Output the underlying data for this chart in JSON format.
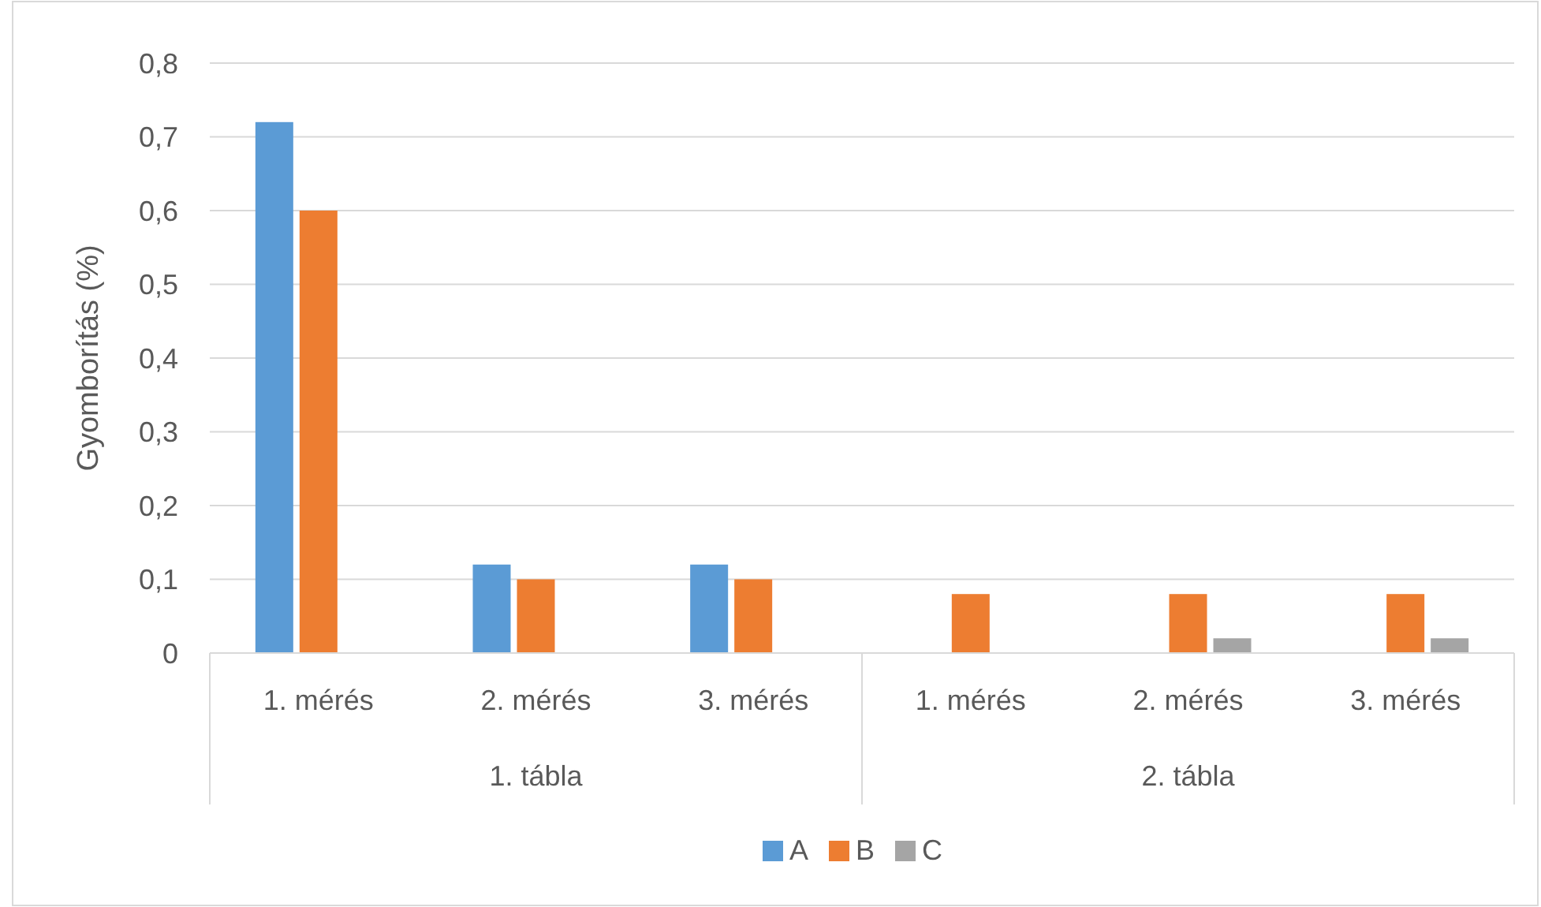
{
  "chart_data": {
    "type": "bar",
    "ylabel": "Gyomborítás (%)",
    "categories": [
      "1. mérés",
      "2. mérés",
      "3. mérés",
      "1. mérés",
      "2. mérés",
      "3. mérés"
    ],
    "annotations": [
      "1. tábla",
      "2. tábla"
    ],
    "series": [
      {
        "name": "A",
        "color": "#5b9bd5",
        "values": [
          0.72,
          0.12,
          0.12,
          null,
          null,
          null
        ]
      },
      {
        "name": "B",
        "color": "#ed7d31",
        "values": [
          0.6,
          0.1,
          0.1,
          0.08,
          0.08,
          0.08
        ]
      },
      {
        "name": "C",
        "color": "#a5a5a5",
        "values": [
          null,
          null,
          null,
          null,
          0.02,
          0.02
        ]
      }
    ],
    "ylim": [
      0,
      0.8
    ],
    "yticks": [
      {
        "value": 0,
        "label": "0"
      },
      {
        "value": 0.1,
        "label": "0,1"
      },
      {
        "value": 0.2,
        "label": "0,2"
      },
      {
        "value": 0.3,
        "label": "0,3"
      },
      {
        "value": 0.4,
        "label": "0,4"
      },
      {
        "value": 0.5,
        "label": "0,5"
      },
      {
        "value": 0.6,
        "label": "0,6"
      },
      {
        "value": 0.7,
        "label": "0,7"
      },
      {
        "value": 0.8,
        "label": "0,8"
      }
    ],
    "grid": "y",
    "legend": "bottom"
  }
}
